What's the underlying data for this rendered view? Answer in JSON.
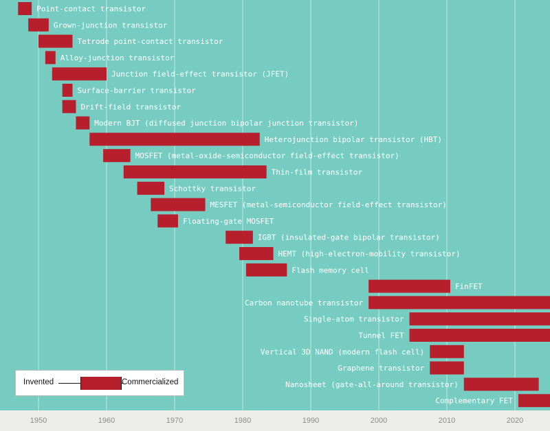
{
  "chart_data": {
    "type": "timeline-range",
    "start_label": "Invented",
    "end_label": "Commercialized",
    "bar_color": "#b61f2b",
    "background_color": "#76ccc1",
    "axis_background": "#ececea",
    "x_ticks": [
      1950,
      1960,
      1970,
      1980,
      1990,
      2000,
      2010,
      2020
    ],
    "xlim": [
      1947.5,
      2026
    ],
    "items": [
      {
        "name": "Point-contact transistor",
        "invented": 1947,
        "commercialized": 1949
      },
      {
        "name": "Grown-junction transistor",
        "invented": 1948.5,
        "commercialized": 1951.5
      },
      {
        "name": "Tetrode point-contact transistor",
        "invented": 1950,
        "commercialized": 1955
      },
      {
        "name": "Alloy-junction transistor",
        "invented": 1951,
        "commercialized": 1952.5
      },
      {
        "name": "Junction field-effect transistor (JFET)",
        "invented": 1952,
        "commercialized": 1960
      },
      {
        "name": "Surface-barrier transistor",
        "invented": 1953.5,
        "commercialized": 1955
      },
      {
        "name": "Drift-field transistor",
        "invented": 1953.5,
        "commercialized": 1955.5
      },
      {
        "name": "Modern BJT (diffused junction bipolar junction transistor)",
        "invented": 1955.5,
        "commercialized": 1957.5
      },
      {
        "name": "Heterojunction bipolar transistor (HBT)",
        "invented": 1957.5,
        "commercialized": 1982.5
      },
      {
        "name": "MOSFET (metal-oxide-semiconductor field-effect transistor)",
        "invented": 1959.5,
        "commercialized": 1963.5
      },
      {
        "name": "Thin-film transistor",
        "invented": 1962.5,
        "commercialized": 1983.5
      },
      {
        "name": "Schottky transistor",
        "invented": 1964.5,
        "commercialized": 1968.5
      },
      {
        "name": "MESFET (metal-semiconductor field-effect transistor)",
        "invented": 1966.5,
        "commercialized": 1974.5
      },
      {
        "name": "Floating-gate MOSFET",
        "invented": 1967.5,
        "commercialized": 1970.5
      },
      {
        "name": "IGBT (insulated-gate bipolar transistor)",
        "invented": 1977.5,
        "commercialized": 1981.5
      },
      {
        "name": "HEMT (high-electron-mobility transistor)",
        "invented": 1979.5,
        "commercialized": 1984.5
      },
      {
        "name": "Flash memory cell",
        "invented": 1980.5,
        "commercialized": 1986.5
      },
      {
        "name": "FinFET",
        "invented": 1998.5,
        "commercialized": 2010.5
      },
      {
        "name": "Carbon nanotube transistor",
        "invented": 1998.5,
        "commercialized": 2026
      },
      {
        "name": "Single-atom transistor",
        "invented": 2004.5,
        "commercialized": 2026
      },
      {
        "name": "Tunnel FET",
        "invented": 2004.5,
        "commercialized": 2026
      },
      {
        "name": "Vertical 3D NAND (modern flash cell)",
        "invented": 2007.5,
        "commercialized": 2012.5
      },
      {
        "name": "Graphene transistor",
        "invented": 2007.5,
        "commercialized": 2012.5
      },
      {
        "name": "Nanosheet (gate-all-around transistor)",
        "invented": 2012.5,
        "commercialized": 2023.5
      },
      {
        "name": "Complementary FET",
        "invented": 2020.5,
        "commercialized": 2026
      }
    ]
  }
}
